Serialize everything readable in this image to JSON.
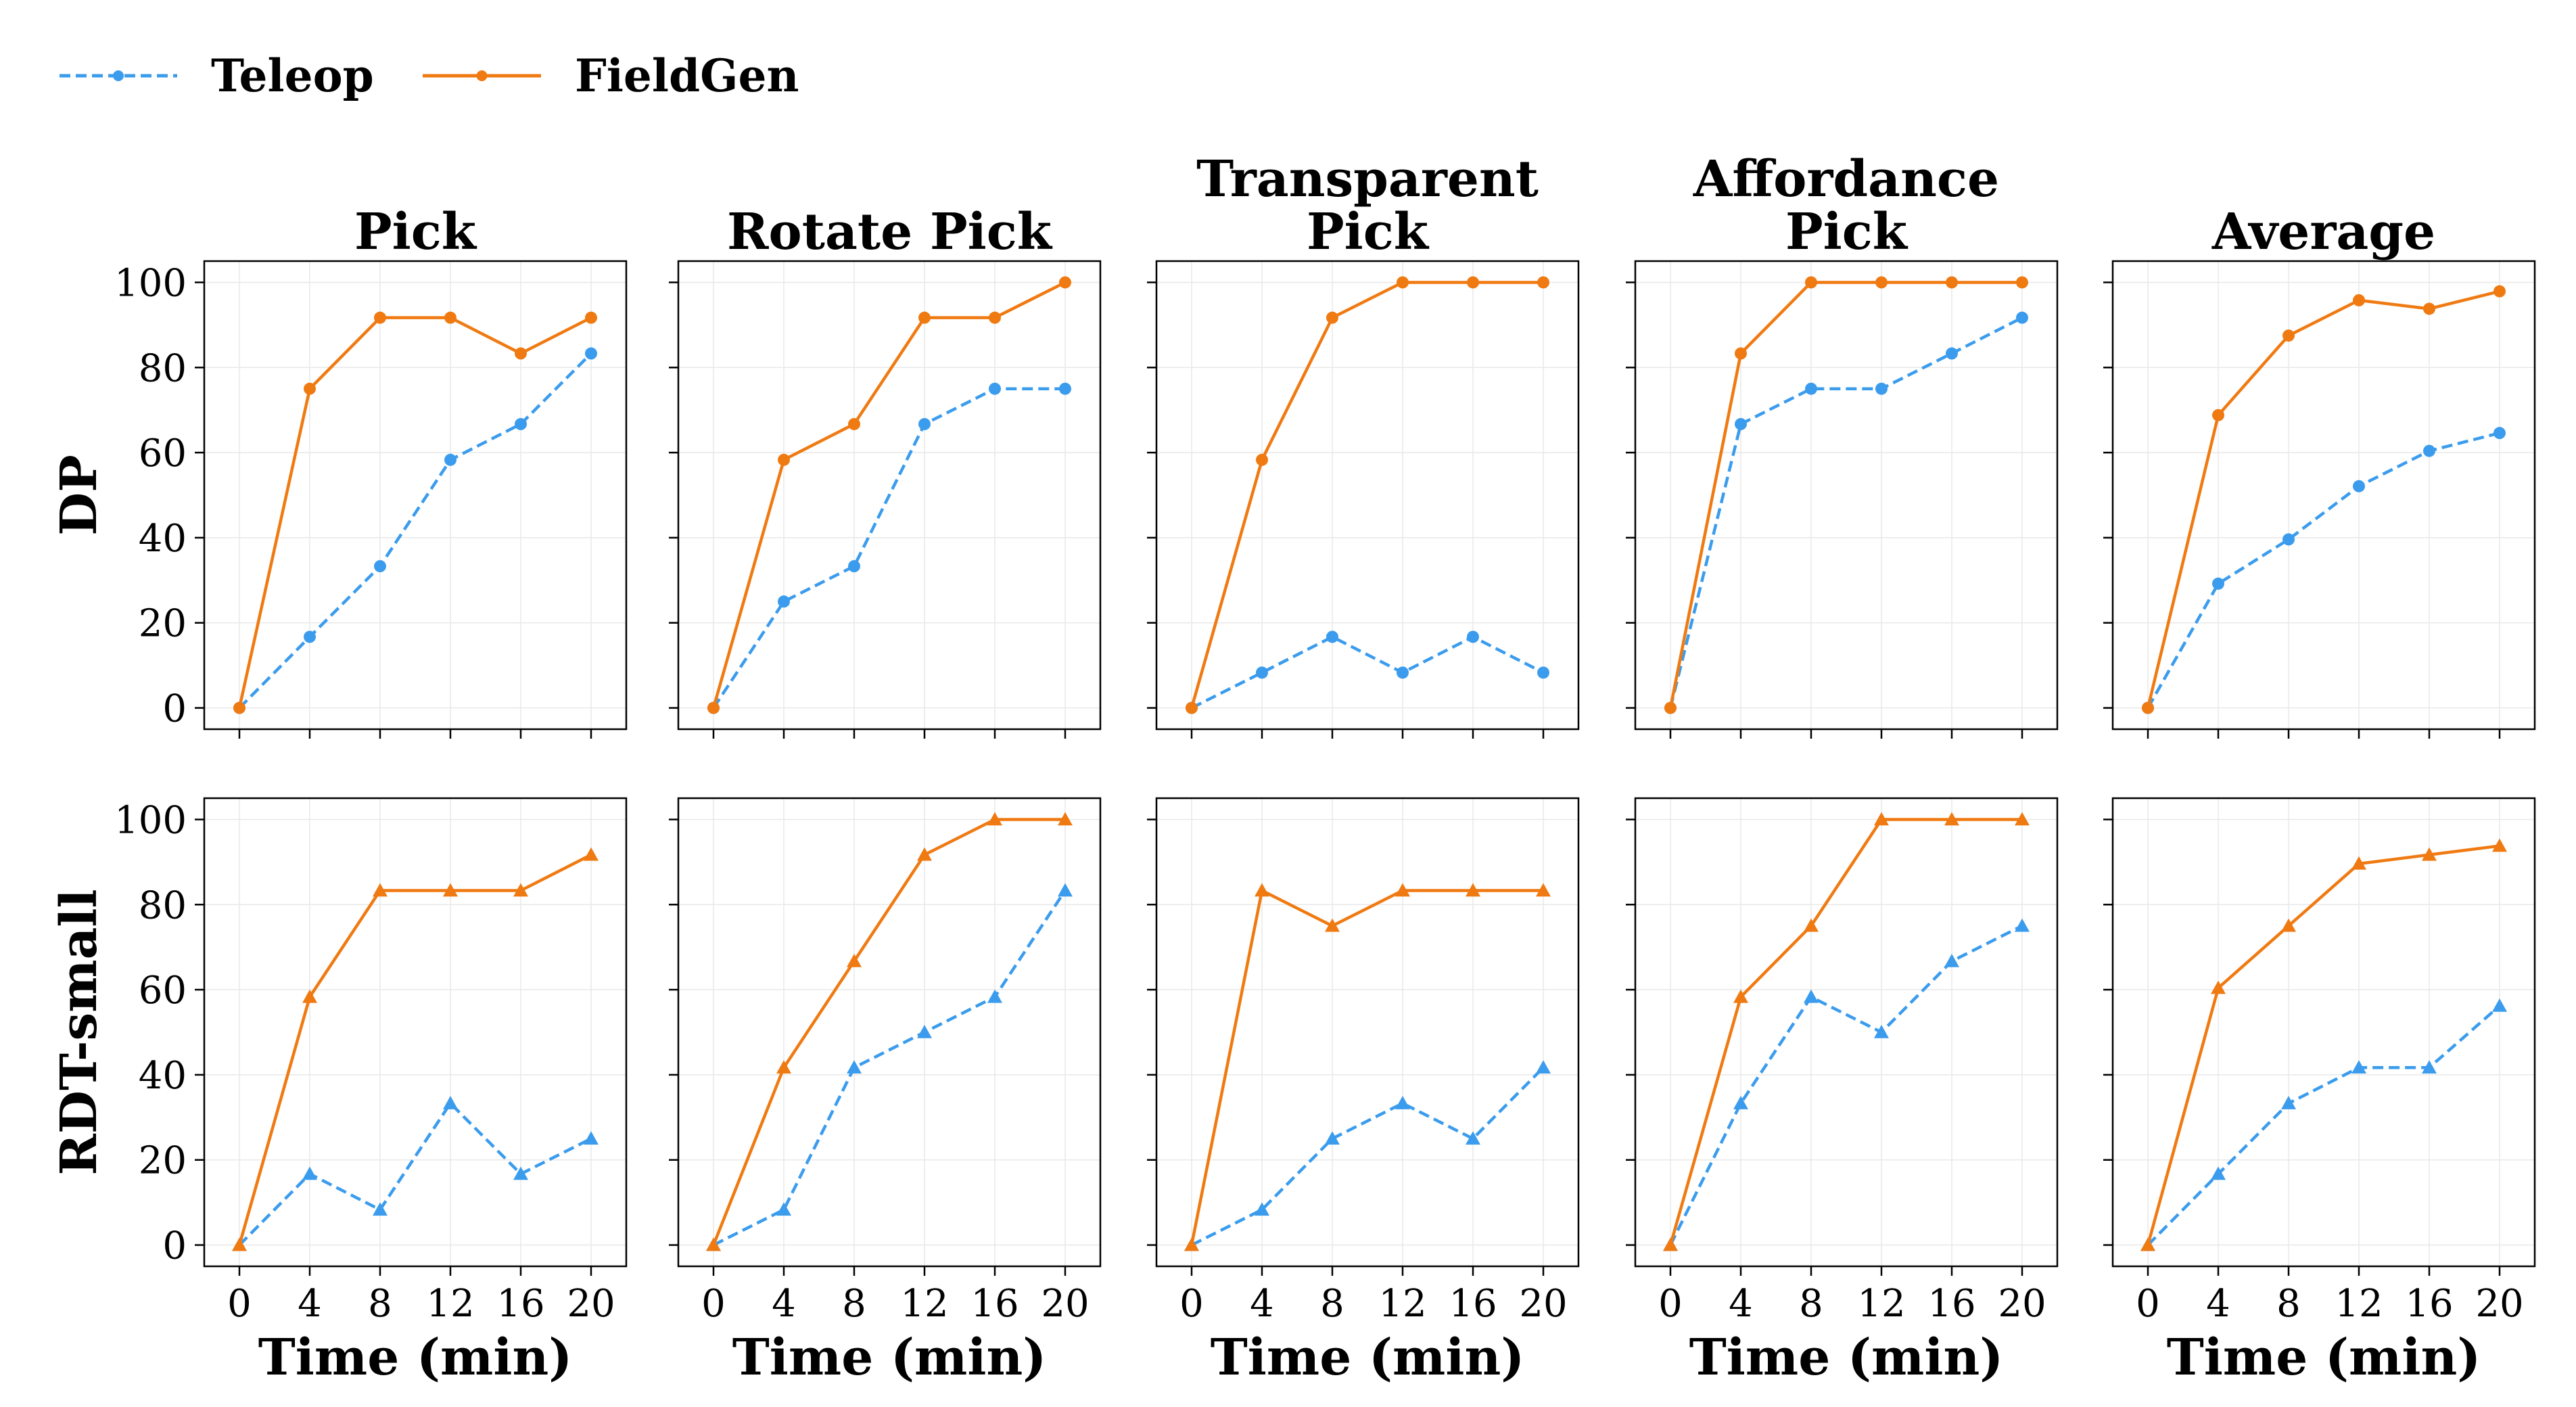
{
  "legend": {
    "items": [
      {
        "label": "Teleop",
        "color": "#3b9ced",
        "style": "dashed"
      },
      {
        "label": "FieldGen",
        "color": "#f07a12",
        "style": "solid"
      }
    ]
  },
  "chart_data": {
    "type": "line",
    "layout": "2 rows x 5 columns grid of line plots",
    "x": [
      0,
      4,
      8,
      12,
      16,
      20
    ],
    "x_ticks": [
      "0",
      "4",
      "8",
      "12",
      "16",
      "20"
    ],
    "y_ticks": [
      "0",
      "20",
      "40",
      "60",
      "80",
      "100"
    ],
    "xlabel": "Time (min)",
    "xlim": [
      -2,
      22
    ],
    "ylim": [
      -5,
      105
    ],
    "grid": true,
    "legend_position": "top-left",
    "column_titles": [
      [
        "Pick"
      ],
      [
        "Rotate Pick"
      ],
      [
        "Transparent",
        "Pick"
      ],
      [
        "Affordance",
        "Pick"
      ],
      [
        "Average"
      ]
    ],
    "rows": [
      {
        "label": "DP",
        "marker": "circle",
        "panels": [
          {
            "title": "Pick",
            "series": [
              {
                "name": "Teleop",
                "values": [
                  0,
                  16.7,
                  33.3,
                  58.3,
                  66.7,
                  83.3
                ]
              },
              {
                "name": "FieldGen",
                "values": [
                  0,
                  75,
                  91.7,
                  91.7,
                  83.3,
                  91.7
                ]
              }
            ]
          },
          {
            "title": "Rotate Pick",
            "series": [
              {
                "name": "Teleop",
                "values": [
                  0,
                  25,
                  33.3,
                  66.7,
                  75,
                  75
                ]
              },
              {
                "name": "FieldGen",
                "values": [
                  0,
                  58.3,
                  66.7,
                  91.7,
                  91.7,
                  100
                ]
              }
            ]
          },
          {
            "title": "Transparent Pick",
            "series": [
              {
                "name": "Teleop",
                "values": [
                  0,
                  8.3,
                  16.7,
                  8.3,
                  16.7,
                  8.3
                ]
              },
              {
                "name": "FieldGen",
                "values": [
                  0,
                  58.3,
                  91.7,
                  100,
                  100,
                  100
                ]
              }
            ]
          },
          {
            "title": "Affordance Pick",
            "series": [
              {
                "name": "Teleop",
                "values": [
                  0,
                  66.7,
                  75,
                  75,
                  83.3,
                  91.7
                ]
              },
              {
                "name": "FieldGen",
                "values": [
                  0,
                  83.3,
                  100,
                  100,
                  100,
                  100
                ]
              }
            ]
          },
          {
            "title": "Average",
            "series": [
              {
                "name": "Teleop",
                "values": [
                  0,
                  29.2,
                  39.6,
                  52.1,
                  60.4,
                  64.6
                ]
              },
              {
                "name": "FieldGen",
                "values": [
                  0,
                  68.8,
                  87.5,
                  95.8,
                  93.8,
                  97.9
                ]
              }
            ]
          }
        ]
      },
      {
        "label": "RDT-small",
        "marker": "triangle",
        "panels": [
          {
            "title": "Pick",
            "series": [
              {
                "name": "Teleop",
                "values": [
                  0,
                  16.7,
                  8.3,
                  33.3,
                  16.7,
                  25
                ]
              },
              {
                "name": "FieldGen",
                "values": [
                  0,
                  58.3,
                  83.3,
                  83.3,
                  83.3,
                  91.7
                ]
              }
            ]
          },
          {
            "title": "Rotate Pick",
            "series": [
              {
                "name": "Teleop",
                "values": [
                  0,
                  8.3,
                  41.7,
                  50,
                  58.3,
                  83.3
                ]
              },
              {
                "name": "FieldGen",
                "values": [
                  0,
                  41.7,
                  66.7,
                  91.7,
                  100,
                  100
                ]
              }
            ]
          },
          {
            "title": "Transparent Pick",
            "series": [
              {
                "name": "Teleop",
                "values": [
                  0,
                  8.3,
                  25,
                  33.3,
                  25,
                  41.7
                ]
              },
              {
                "name": "FieldGen",
                "values": [
                  0,
                  83.3,
                  75,
                  83.3,
                  83.3,
                  83.3
                ]
              }
            ]
          },
          {
            "title": "Affordance Pick",
            "series": [
              {
                "name": "Teleop",
                "values": [
                  0,
                  33.3,
                  58.3,
                  50,
                  66.7,
                  75
                ]
              },
              {
                "name": "FieldGen",
                "values": [
                  0,
                  58.3,
                  75,
                  100,
                  100,
                  100
                ]
              }
            ]
          },
          {
            "title": "Average",
            "series": [
              {
                "name": "Teleop",
                "values": [
                  0,
                  16.7,
                  33.3,
                  41.7,
                  41.7,
                  56.2
                ]
              },
              {
                "name": "FieldGen",
                "values": [
                  0,
                  60.4,
                  75,
                  89.6,
                  91.7,
                  93.8
                ]
              }
            ]
          }
        ]
      }
    ]
  }
}
